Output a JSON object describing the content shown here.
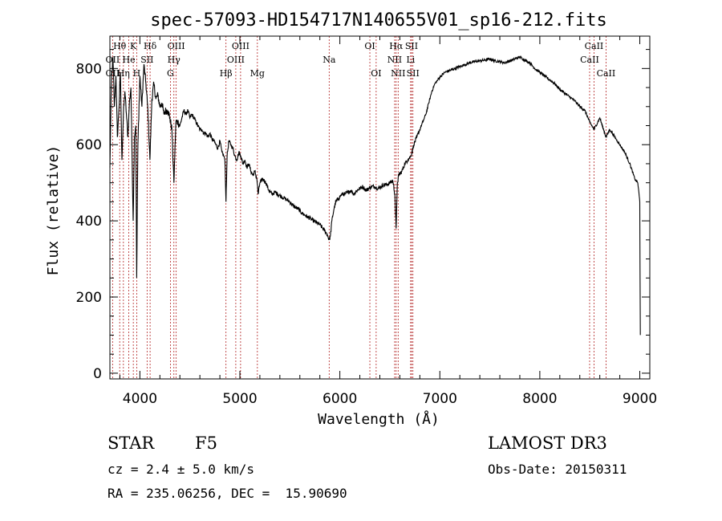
{
  "chart_data": {
    "type": "line",
    "title": "spec-57093-HD154717N140655V01_sp16-212.fits",
    "xlabel": "Wavelength (Å)",
    "ylabel": "Flux (relative)",
    "xlim": [
      3700,
      9100
    ],
    "ylim": [
      -15,
      885
    ],
    "xticks": [
      4000,
      5000,
      6000,
      7000,
      8000,
      9000
    ],
    "yticks": [
      0,
      200,
      400,
      600,
      800
    ],
    "grid": false,
    "series": [
      {
        "values": [
          [
            3700,
            540
          ],
          [
            3715,
            760
          ],
          [
            3730,
            830
          ],
          [
            3745,
            700
          ],
          [
            3760,
            780
          ],
          [
            3775,
            620
          ],
          [
            3790,
            690
          ],
          [
            3805,
            790
          ],
          [
            3820,
            560
          ],
          [
            3835,
            680
          ],
          [
            3850,
            740
          ],
          [
            3865,
            680
          ],
          [
            3880,
            620
          ],
          [
            3895,
            710
          ],
          [
            3910,
            750
          ],
          [
            3920,
            600
          ],
          [
            3933,
            400
          ],
          [
            3945,
            620
          ],
          [
            3958,
            650
          ],
          [
            3968,
            250
          ],
          [
            3980,
            600
          ],
          [
            4000,
            780
          ],
          [
            4020,
            700
          ],
          [
            4040,
            810
          ],
          [
            4060,
            760
          ],
          [
            4080,
            690
          ],
          [
            4100,
            560
          ],
          [
            4120,
            720
          ],
          [
            4140,
            760
          ],
          [
            4160,
            720
          ],
          [
            4180,
            730
          ],
          [
            4200,
            700
          ],
          [
            4220,
            710
          ],
          [
            4240,
            680
          ],
          [
            4260,
            690
          ],
          [
            4280,
            690
          ],
          [
            4300,
            670
          ],
          [
            4320,
            640
          ],
          [
            4340,
            500
          ],
          [
            4360,
            660
          ],
          [
            4380,
            660
          ],
          [
            4400,
            650
          ],
          [
            4420,
            670
          ],
          [
            4440,
            690
          ],
          [
            4460,
            680
          ],
          [
            4480,
            690
          ],
          [
            4500,
            670
          ],
          [
            4520,
            680
          ],
          [
            4540,
            670
          ],
          [
            4560,
            660
          ],
          [
            4580,
            650
          ],
          [
            4600,
            640
          ],
          [
            4620,
            640
          ],
          [
            4640,
            630
          ],
          [
            4660,
            630
          ],
          [
            4680,
            620
          ],
          [
            4700,
            630
          ],
          [
            4720,
            615
          ],
          [
            4740,
            610
          ],
          [
            4760,
            600
          ],
          [
            4780,
            590
          ],
          [
            4800,
            610
          ],
          [
            4820,
            580
          ],
          [
            4840,
            570
          ],
          [
            4850,
            560
          ],
          [
            4861,
            450
          ],
          [
            4872,
            570
          ],
          [
            4890,
            610
          ],
          [
            4910,
            600
          ],
          [
            4930,
            590
          ],
          [
            4950,
            570
          ],
          [
            4970,
            560
          ],
          [
            4990,
            580
          ],
          [
            5010,
            570
          ],
          [
            5030,
            550
          ],
          [
            5050,
            560
          ],
          [
            5070,
            540
          ],
          [
            5090,
            550
          ],
          [
            5110,
            530
          ],
          [
            5130,
            520
          ],
          [
            5150,
            530
          ],
          [
            5170,
            510
          ],
          [
            5183,
            470
          ],
          [
            5200,
            500
          ],
          [
            5230,
            510
          ],
          [
            5260,
            500
          ],
          [
            5290,
            480
          ],
          [
            5320,
            470
          ],
          [
            5350,
            475
          ],
          [
            5380,
            470
          ],
          [
            5410,
            465
          ],
          [
            5440,
            460
          ],
          [
            5470,
            455
          ],
          [
            5500,
            450
          ],
          [
            5530,
            440
          ],
          [
            5560,
            435
          ],
          [
            5590,
            430
          ],
          [
            5620,
            420
          ],
          [
            5650,
            415
          ],
          [
            5680,
            410
          ],
          [
            5710,
            405
          ],
          [
            5740,
            400
          ],
          [
            5770,
            395
          ],
          [
            5800,
            390
          ],
          [
            5830,
            380
          ],
          [
            5860,
            370
          ],
          [
            5880,
            360
          ],
          [
            5893,
            350
          ],
          [
            5905,
            360
          ],
          [
            5920,
            400
          ],
          [
            5940,
            430
          ],
          [
            5960,
            450
          ],
          [
            5990,
            460
          ],
          [
            6020,
            470
          ],
          [
            6050,
            470
          ],
          [
            6080,
            475
          ],
          [
            6110,
            480
          ],
          [
            6140,
            470
          ],
          [
            6170,
            480
          ],
          [
            6200,
            485
          ],
          [
            6230,
            490
          ],
          [
            6260,
            480
          ],
          [
            6290,
            485
          ],
          [
            6320,
            490
          ],
          [
            6350,
            490
          ],
          [
            6380,
            485
          ],
          [
            6410,
            490
          ],
          [
            6440,
            495
          ],
          [
            6470,
            495
          ],
          [
            6500,
            500
          ],
          [
            6530,
            505
          ],
          [
            6550,
            470
          ],
          [
            6563,
            380
          ],
          [
            6575,
            500
          ],
          [
            6590,
            520
          ],
          [
            6620,
            530
          ],
          [
            6650,
            550
          ],
          [
            6680,
            560
          ],
          [
            6710,
            570
          ],
          [
            6740,
            600
          ],
          [
            6770,
            620
          ],
          [
            6800,
            640
          ],
          [
            6830,
            660
          ],
          [
            6860,
            680
          ],
          [
            6890,
            710
          ],
          [
            6920,
            740
          ],
          [
            6950,
            760
          ],
          [
            6980,
            770
          ],
          [
            7010,
            780
          ],
          [
            7050,
            790
          ],
          [
            7100,
            795
          ],
          [
            7150,
            800
          ],
          [
            7200,
            805
          ],
          [
            7250,
            810
          ],
          [
            7300,
            815
          ],
          [
            7350,
            818
          ],
          [
            7400,
            820
          ],
          [
            7450,
            822
          ],
          [
            7500,
            825
          ],
          [
            7550,
            820
          ],
          [
            7600,
            818
          ],
          [
            7650,
            815
          ],
          [
            7700,
            820
          ],
          [
            7750,
            825
          ],
          [
            7800,
            830
          ],
          [
            7850,
            822
          ],
          [
            7900,
            815
          ],
          [
            7950,
            800
          ],
          [
            8000,
            790
          ],
          [
            8050,
            780
          ],
          [
            8100,
            770
          ],
          [
            8150,
            760
          ],
          [
            8200,
            745
          ],
          [
            8250,
            735
          ],
          [
            8300,
            725
          ],
          [
            8350,
            715
          ],
          [
            8400,
            700
          ],
          [
            8450,
            690
          ],
          [
            8498,
            660
          ],
          [
            8542,
            640
          ],
          [
            8600,
            670
          ],
          [
            8662,
            620
          ],
          [
            8700,
            640
          ],
          [
            8750,
            620
          ],
          [
            8800,
            600
          ],
          [
            8850,
            580
          ],
          [
            8900,
            550
          ],
          [
            8950,
            510
          ],
          [
            8980,
            500
          ],
          [
            9000,
            450
          ],
          [
            9005,
            100
          ]
        ]
      }
    ],
    "annotations": [
      {
        "text": "Hθ",
        "x": 3798,
        "row": 0
      },
      {
        "text": "K",
        "x": 3934,
        "row": 0
      },
      {
        "text": "Hδ",
        "x": 4102,
        "row": 0
      },
      {
        "text": "OIII",
        "x": 4363,
        "row": 0
      },
      {
        "text": "OIII",
        "x": 5007,
        "row": 0
      },
      {
        "text": "OI",
        "x": 6300,
        "row": 0
      },
      {
        "text": "Hα",
        "x": 6563,
        "row": 0
      },
      {
        "text": "SII",
        "x": 6717,
        "row": 0
      },
      {
        "text": "CaII",
        "x": 8542,
        "row": 0
      },
      {
        "text": "OII",
        "x": 3727,
        "row": 1
      },
      {
        "text": "He",
        "x": 3889,
        "row": 1
      },
      {
        "text": "SII",
        "x": 4072,
        "row": 1
      },
      {
        "text": "Hγ",
        "x": 4340,
        "row": 1
      },
      {
        "text": "OIII",
        "x": 4959,
        "row": 1
      },
      {
        "text": "Na",
        "x": 5893,
        "row": 1
      },
      {
        "text": "NII",
        "x": 6548,
        "row": 1
      },
      {
        "text": "Li",
        "x": 6708,
        "row": 1
      },
      {
        "text": "CaII",
        "x": 8498,
        "row": 1
      },
      {
        "text": "OII",
        "x": 3727,
        "row": 2
      },
      {
        "text": "Hη",
        "x": 3835,
        "row": 2
      },
      {
        "text": "H",
        "x": 3968,
        "row": 2
      },
      {
        "text": "G",
        "x": 4305,
        "row": 2
      },
      {
        "text": "Hβ",
        "x": 4861,
        "row": 2
      },
      {
        "text": "Mg",
        "x": 5175,
        "row": 2
      },
      {
        "text": "OI",
        "x": 6363,
        "row": 2
      },
      {
        "text": "NII",
        "x": 6583,
        "row": 2
      },
      {
        "text": "SII",
        "x": 6731,
        "row": 2
      },
      {
        "text": "CaII",
        "x": 8662,
        "row": 2
      }
    ],
    "line_markers": [
      3727,
      3798,
      3835,
      3889,
      3934,
      3968,
      4072,
      4102,
      4305,
      4340,
      4363,
      4861,
      4959,
      5007,
      5175,
      5893,
      6300,
      6363,
      6548,
      6563,
      6583,
      6708,
      6717,
      6731,
      8498,
      8542,
      8662
    ],
    "marker_color": "#b22222"
  },
  "info": {
    "object_type": "STAR",
    "subclass": "F5",
    "survey": "LAMOST DR3",
    "cz": "cz = 2.4 ± 5.0 km/s",
    "obs_date": "Obs-Date: 20150311",
    "coords": "RA = 235.06256, DEC =  15.90690"
  }
}
